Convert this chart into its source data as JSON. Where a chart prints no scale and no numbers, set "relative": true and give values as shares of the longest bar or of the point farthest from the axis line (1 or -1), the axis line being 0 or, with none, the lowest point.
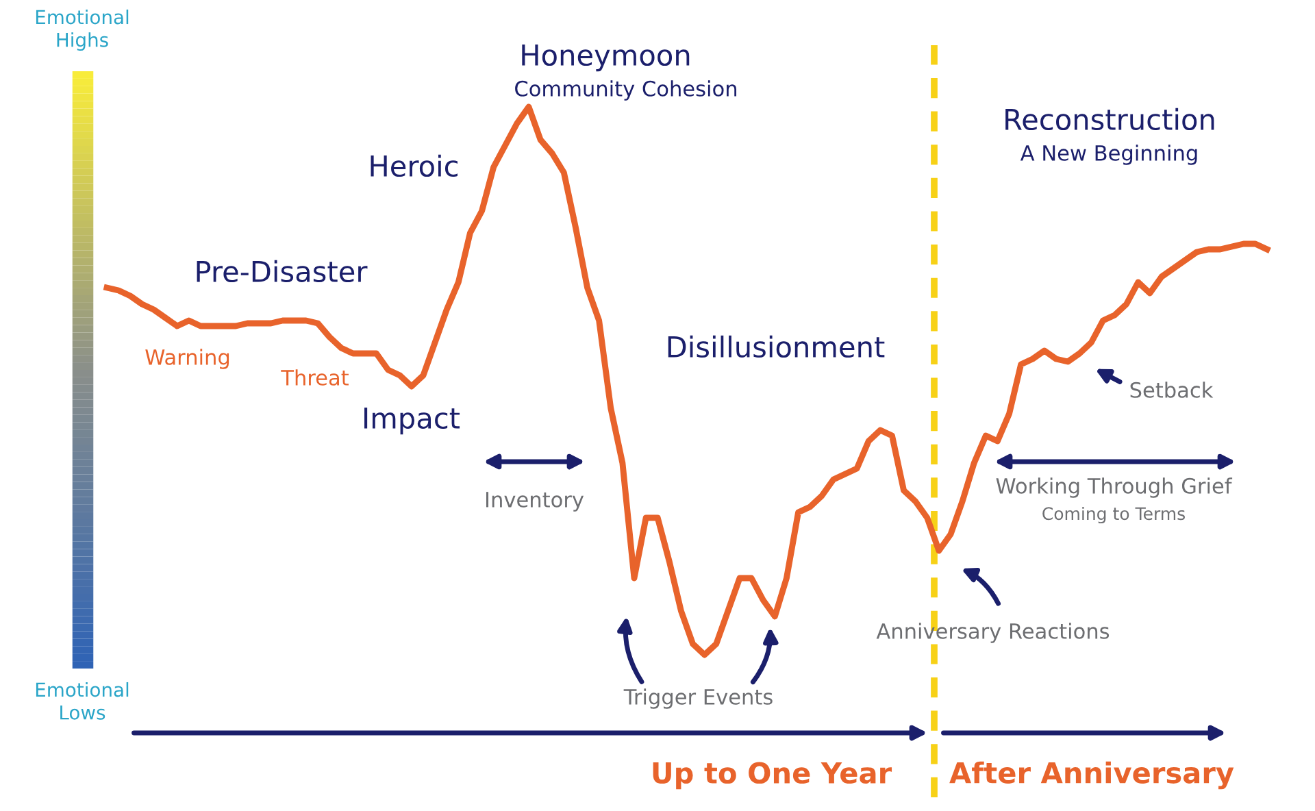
{
  "chart_data": {
    "type": "line",
    "relative": true,
    "legend": false,
    "line_style": "solid",
    "marker": "none",
    "categories": [
      null,
      null,
      null,
      null,
      null,
      null,
      null,
      null,
      null,
      null,
      null,
      null,
      null,
      null,
      null,
      null,
      null,
      null,
      null,
      null,
      null,
      null,
      null,
      null,
      null,
      null,
      null,
      null,
      null,
      null,
      null,
      null,
      null,
      null,
      null,
      null,
      null,
      null,
      null,
      null,
      null,
      null,
      null,
      null,
      null,
      null,
      null,
      null,
      null,
      null,
      null,
      null,
      null,
      null,
      null,
      null,
      null,
      null,
      null,
      null,
      null,
      null,
      null,
      null,
      null,
      null,
      null,
      null,
      null,
      null,
      null,
      null,
      null,
      null,
      null,
      null,
      null,
      null,
      null,
      null,
      null,
      null,
      null,
      null,
      null,
      null,
      null,
      null,
      null,
      null,
      null,
      null,
      null,
      null,
      null,
      null,
      null,
      null,
      null,
      null
    ],
    "series": [
      {
        "color": "#e8632b",
        "values": [
          0.67,
          0.665,
          0.655,
          0.64,
          0.63,
          0.615,
          0.6,
          0.61,
          0.6,
          0.6,
          0.6,
          0.6,
          0.605,
          0.605,
          0.605,
          0.61,
          0.61,
          0.61,
          0.605,
          0.58,
          0.56,
          0.55,
          0.55,
          0.55,
          0.52,
          0.51,
          0.49,
          0.51,
          0.57,
          0.63,
          0.68,
          0.77,
          0.81,
          0.89,
          0.93,
          0.97,
          1.0,
          0.94,
          0.915,
          0.88,
          0.78,
          0.67,
          0.61,
          0.45,
          0.35,
          0.14,
          0.25,
          0.25,
          0.17,
          0.08,
          0.02,
          0,
          0.02,
          0.08,
          0.14,
          0.14,
          0.1,
          0.07,
          0.14,
          0.26,
          0.27,
          0.29,
          0.32,
          0.33,
          0.34,
          0.39,
          0.41,
          0.4,
          0.3,
          0.28,
          0.25,
          0.19,
          0.22,
          0.28,
          0.35,
          0.4,
          0.39,
          0.44,
          0.53,
          0.54,
          0.555,
          0.54,
          0.535,
          0.55,
          0.57,
          0.61,
          0.62,
          0.64,
          0.68,
          0.66,
          0.69,
          0.705,
          0.72,
          0.735,
          0.74,
          0.74,
          0.745,
          0.75,
          0.75,
          0.74
        ]
      }
    ],
    "annotations": [
      "Emotional\nHighs",
      "Emotional\nLows",
      "Pre-Disaster",
      "Warning",
      "Threat",
      "Impact",
      "Heroic",
      "Honeymoon",
      "Community Cohesion",
      "Disillusionment",
      "Inventory",
      "Trigger Events",
      "Anniversary Reactions",
      "Reconstruction",
      "A New Beginning",
      "Setback",
      "Working Through Grief",
      "Coming to Terms",
      "Up to One Year",
      "After Anniversary"
    ]
  }
}
